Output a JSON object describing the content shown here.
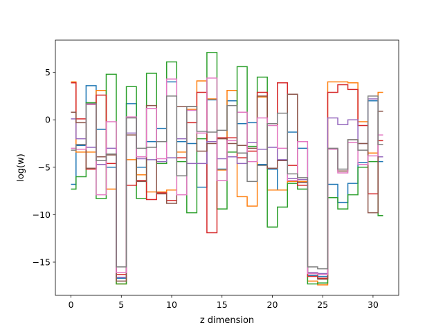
{
  "chart_data": {
    "type": "line",
    "drawstyle": "steps-mid",
    "title": "",
    "xlabel": "z dimension",
    "ylabel": "log(w)",
    "xlim": [
      -1.55,
      32.55
    ],
    "ylim": [
      -18.5,
      8.4
    ],
    "xticks": [
      0,
      5,
      10,
      15,
      20,
      25,
      30
    ],
    "yticks": [
      5,
      0,
      -5,
      -10,
      -15
    ],
    "ytick_labels": [
      "5",
      "0",
      "−5",
      "−10",
      "−15"
    ],
    "grid": false,
    "legend": "none",
    "x": [
      0,
      1,
      2,
      3,
      4,
      5,
      6,
      7,
      8,
      9,
      10,
      11,
      12,
      13,
      14,
      15,
      16,
      17,
      18,
      19,
      20,
      21,
      22,
      23,
      24,
      25,
      26,
      27,
      28,
      29,
      30,
      31
    ],
    "series": [
      {
        "color": "#1f77b4",
        "values": [
          -6.8,
          -2.7,
          3.6,
          -1.0,
          -5.0,
          -16.7,
          1.7,
          -5.0,
          -2.3,
          -0.9,
          4.0,
          -2.3,
          -2.5,
          -7.1,
          2.1,
          -5.2,
          2.0,
          -0.4,
          -0.3,
          -4.7,
          -5.2,
          -7.4,
          -1.3,
          -3.0,
          -16.4,
          -16.5,
          -6.8,
          -8.7,
          -6.7,
          -4.5,
          2.0,
          -4.4
        ]
      },
      {
        "color": "#ff7f0e",
        "values": [
          4.0,
          -3.4,
          -3.4,
          3.1,
          -7.3,
          -17.3,
          -4.2,
          -5.8,
          -7.6,
          -7.6,
          -7.4,
          -3.4,
          1.1,
          4.1,
          2.2,
          -5.3,
          3.1,
          -8.1,
          -9.1,
          2.4,
          -7.4,
          -7.4,
          -6.5,
          -6.5,
          -17.0,
          -17.4,
          4.0,
          4.0,
          3.9,
          -0.2,
          -3.5,
          2.9
        ]
      },
      {
        "color": "#2ca02c",
        "values": [
          -7.3,
          -6.0,
          1.8,
          -8.3,
          4.8,
          -17.3,
          3.5,
          -8.3,
          4.9,
          -4.6,
          6.1,
          -4.4,
          -9.8,
          -2.0,
          7.1,
          -9.4,
          -3.4,
          5.6,
          -2.8,
          4.5,
          -11.3,
          -9.2,
          -6.7,
          -7.3,
          -17.3,
          -17.2,
          -8.2,
          -9.4,
          -7.9,
          -5.0,
          -4.4,
          -10.1
        ]
      },
      {
        "color": "#d62728",
        "values": [
          3.9,
          0.1,
          -5.2,
          2.6,
          -4.6,
          -16.3,
          -6.9,
          -6.4,
          -8.4,
          -7.7,
          -8.5,
          -4.0,
          -0.3,
          2.9,
          -11.9,
          -1.9,
          -1.9,
          -4.0,
          -3.3,
          2.9,
          -5.1,
          3.9,
          -4.8,
          -6.9,
          -16.5,
          -16.7,
          2.9,
          3.7,
          3.2,
          -0.6,
          -7.8,
          -2.2
        ]
      },
      {
        "color": "#9467bd",
        "values": [
          0.1,
          -2.0,
          -2.9,
          -4.7,
          -3.0,
          -16.6,
          -1.4,
          -4.1,
          -4.2,
          -4.4,
          -4.0,
          -2.0,
          -4.6,
          -4.6,
          -2.3,
          -4.1,
          -3.9,
          -4.6,
          -2.4,
          -3.1,
          -2.9,
          -4.2,
          -6.2,
          -6.3,
          -16.1,
          -16.2,
          0.2,
          -0.5,
          0.0,
          -2.5,
          2.2,
          -3.9
        ]
      },
      {
        "color": "#8c564b",
        "values": [
          0.8,
          -0.3,
          -5.1,
          -3.9,
          -3.7,
          -17.0,
          -1.6,
          -6.5,
          1.5,
          -7.8,
          -8.8,
          1.4,
          1.4,
          -3.3,
          -2.5,
          -2.0,
          -2.5,
          -2.7,
          -3.0,
          2.5,
          -5.1,
          -4.3,
          2.7,
          -6.6,
          -16.2,
          -16.8,
          -3.1,
          -5.4,
          -2.1,
          -2.5,
          -9.8,
          0.9
        ]
      },
      {
        "color": "#e377c2",
        "values": [
          -3.0,
          -3.1,
          1.6,
          -7.9,
          -0.2,
          -16.1,
          0.3,
          -3.9,
          1.2,
          -4.1,
          4.3,
          -7.9,
          1.0,
          -1.4,
          4.4,
          -6.4,
          -2.2,
          0.8,
          -4.4,
          0.2,
          -0.6,
          -3.0,
          -6.4,
          -2.3,
          -16.2,
          -16.3,
          -3.1,
          -5.6,
          -2.4,
          -4.7,
          -3.8,
          -1.6
        ]
      },
      {
        "color": "#7f7f7f",
        "values": [
          -3.2,
          -2.6,
          1.7,
          -4.3,
          -3.6,
          -15.5,
          0.2,
          -3.0,
          -2.9,
          -2.3,
          2.5,
          -5.9,
          1.4,
          -1.2,
          -1.3,
          -1.1,
          1.5,
          -3.5,
          -6.5,
          -4.8,
          -0.4,
          0.7,
          -5.7,
          -6.1,
          -15.5,
          -15.7,
          -3.0,
          -5.2,
          -2.1,
          -3.2,
          2.5,
          -2.6
        ]
      }
    ]
  }
}
